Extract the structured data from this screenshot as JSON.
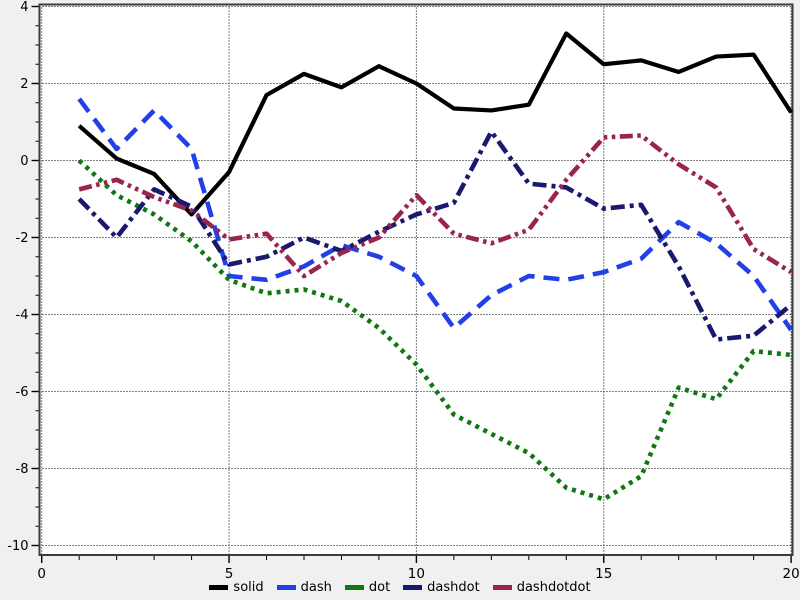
{
  "chart_data": {
    "type": "line",
    "x": [
      1,
      2,
      3,
      4,
      5,
      6,
      7,
      8,
      9,
      10,
      11,
      12,
      13,
      14,
      15,
      16,
      17,
      18,
      19,
      20
    ],
    "series": [
      {
        "name": "solid",
        "color": "#000000",
        "linestyle": "solid",
        "values": [
          0.9,
          0.05,
          -0.35,
          -1.4,
          -0.3,
          1.7,
          2.25,
          1.9,
          2.45,
          2.0,
          1.35,
          1.3,
          1.45,
          3.3,
          2.5,
          2.6,
          2.3,
          2.7,
          2.75,
          1.25
        ]
      },
      {
        "name": "dash",
        "color": "#2240e8",
        "linestyle": "dash",
        "values": [
          1.6,
          0.3,
          1.3,
          0.3,
          -3.0,
          -3.1,
          -2.75,
          -2.2,
          -2.5,
          -3.0,
          -4.35,
          -3.5,
          -3.0,
          -3.1,
          -2.9,
          -2.55,
          -1.6,
          -2.15,
          -3.0,
          -4.4
        ]
      },
      {
        "name": "dot",
        "color": "#117711",
        "linestyle": "dot",
        "values": [
          0.0,
          -0.9,
          -1.4,
          -2.1,
          -3.1,
          -3.45,
          -3.35,
          -3.65,
          -4.35,
          -5.3,
          -6.6,
          -7.1,
          -7.6,
          -8.5,
          -8.8,
          -8.2,
          -5.9,
          -6.2,
          -4.95,
          -5.05
        ]
      },
      {
        "name": "dashdot",
        "color": "#191970",
        "linestyle": "dashdot",
        "values": [
          -1.0,
          -2.0,
          -0.75,
          -1.2,
          -2.7,
          -2.5,
          -2.0,
          -2.35,
          -1.85,
          -1.4,
          -1.1,
          0.75,
          -0.6,
          -0.7,
          -1.25,
          -1.15,
          -2.75,
          -4.65,
          -4.55,
          -3.75
        ]
      },
      {
        "name": "dashdotdot",
        "color": "#992450",
        "linestyle": "dashdotdot",
        "values": [
          -0.75,
          -0.5,
          -0.95,
          -1.3,
          -2.05,
          -1.9,
          -3.0,
          -2.4,
          -2.0,
          -0.9,
          -1.9,
          -2.15,
          -1.8,
          -0.5,
          0.6,
          0.65,
          -0.1,
          -0.7,
          -2.3,
          -2.9
        ]
      }
    ],
    "title": "",
    "xlabel": "",
    "ylabel": "",
    "xlim": [
      0,
      20
    ],
    "ylim": [
      -10,
      4
    ],
    "x_major_ticks": [
      0,
      5,
      10,
      15,
      20
    ],
    "x_tick_labels": [
      "0",
      "5",
      "10",
      "15",
      "20"
    ],
    "x_minor_step": 1,
    "y_major_ticks": [
      4,
      2,
      0,
      -2,
      -4,
      -6,
      -8,
      -10
    ],
    "y_tick_labels": [
      "4",
      "2",
      "0",
      "-2",
      "-4",
      "-6",
      "-8",
      "-10"
    ],
    "y_minor_step": 0.5,
    "grid": true,
    "legend_position": "bottom"
  },
  "legend": {
    "items": [
      {
        "label": "solid",
        "color": "#000000"
      },
      {
        "label": "dash",
        "color": "#2240e8"
      },
      {
        "label": "dot",
        "color": "#117711"
      },
      {
        "label": "dashdot",
        "color": "#191970"
      },
      {
        "label": "dashdotdot",
        "color": "#992450"
      }
    ]
  },
  "colors": {
    "plot_background": "#ffffff",
    "margin_background": "#f0f0f0",
    "frame": "#3c3c3c",
    "grid": "#000000",
    "tick_label": "#000000"
  }
}
